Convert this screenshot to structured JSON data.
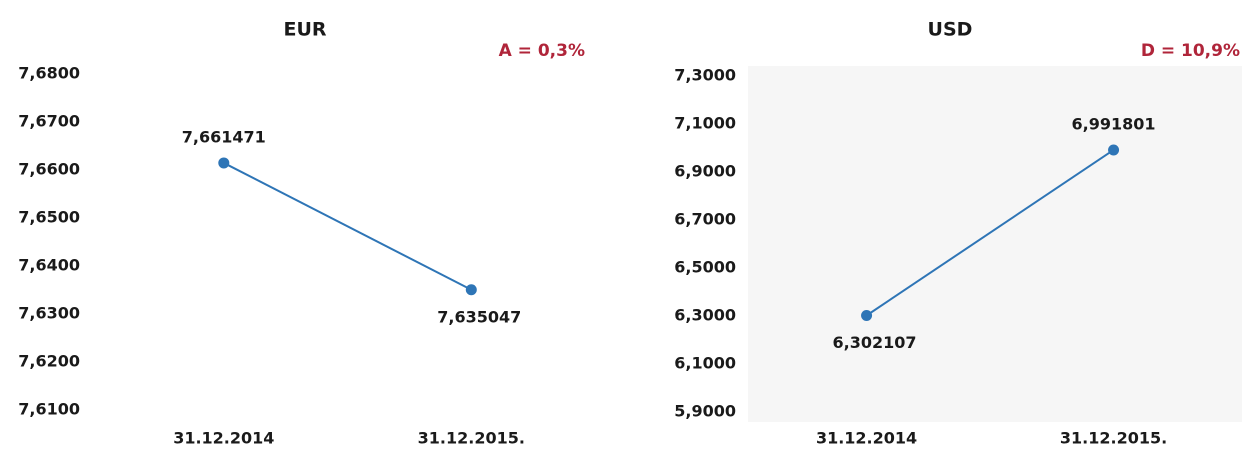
{
  "chart_data": [
    {
      "type": "line",
      "title": "EUR",
      "annotation": "A = 0,3%",
      "categories": [
        "31.12.2014",
        "31.12.2015."
      ],
      "values": [
        7.661471,
        7.635047
      ],
      "value_labels": [
        "7,661471",
        "7,635047"
      ],
      "color": "#2e75b6",
      "background": "#ffffff",
      "ylim": [
        7.61,
        7.68
      ],
      "yticks": [
        {
          "value": 7.61,
          "label": "7,6100"
        },
        {
          "value": 7.62,
          "label": "7,6200"
        },
        {
          "value": 7.63,
          "label": "7,6300"
        },
        {
          "value": 7.64,
          "label": "7,6400"
        },
        {
          "value": 7.65,
          "label": "7,6500"
        },
        {
          "value": 7.66,
          "label": "7,6600"
        },
        {
          "value": 7.67,
          "label": "7,6700"
        },
        {
          "value": 7.68,
          "label": "7,6800"
        }
      ],
      "grid": false
    },
    {
      "type": "line",
      "title": "USD",
      "annotation": "D = 10,9%",
      "categories": [
        "31.12.2014",
        "31.12.2015."
      ],
      "values": [
        6.302107,
        6.991801
      ],
      "value_labels": [
        "6,302107",
        "6,991801"
      ],
      "color": "#2e75b6",
      "background": "#f6f6f6",
      "ylim": [
        5.9,
        7.3
      ],
      "yticks": [
        {
          "value": 5.9,
          "label": "5,9000"
        },
        {
          "value": 6.1,
          "label": "6,1000"
        },
        {
          "value": 6.3,
          "label": "6,3000"
        },
        {
          "value": 6.5,
          "label": "6,5000"
        },
        {
          "value": 6.7,
          "label": "6,7000"
        },
        {
          "value": 6.9,
          "label": "6,9000"
        },
        {
          "value": 7.1,
          "label": "7,1000"
        },
        {
          "value": 7.3,
          "label": "7,3000"
        }
      ],
      "grid": false
    }
  ]
}
